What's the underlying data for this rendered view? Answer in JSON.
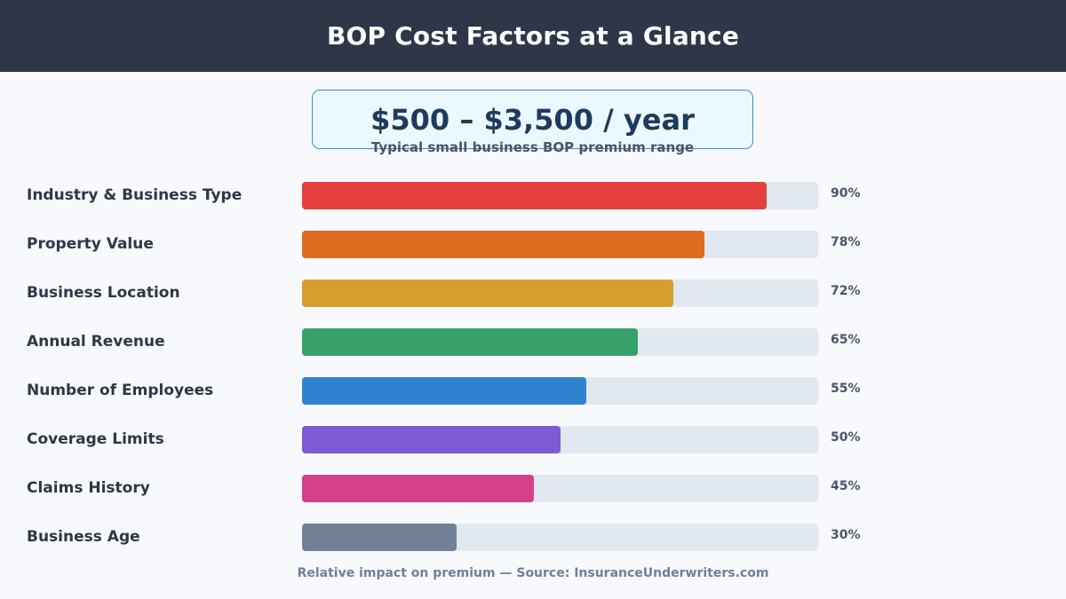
{
  "header": {
    "title": "BOP Cost Factors at a Glance"
  },
  "range": {
    "value": "$500 – $3,500 / year",
    "subtitle": "Typical small business BOP premium range"
  },
  "chart_data": {
    "type": "bar",
    "orientation": "horizontal",
    "categories": [
      "Industry & Business Type",
      "Property Value",
      "Business Location",
      "Annual Revenue",
      "Number of Employees",
      "Coverage Limits",
      "Claims History",
      "Business Age"
    ],
    "values": [
      90,
      78,
      72,
      65,
      55,
      50,
      45,
      30
    ],
    "value_labels": [
      "90%",
      "78%",
      "72%",
      "65%",
      "55%",
      "50%",
      "45%",
      "30%"
    ],
    "colors": [
      "#e53e3e",
      "#dd6b20",
      "#d69e2e",
      "#38a169",
      "#3182ce",
      "#805ad5",
      "#d53f8c",
      "#718096"
    ],
    "xlim": [
      0,
      100
    ],
    "grid": false,
    "legend": "none"
  },
  "footer": {
    "note": "Relative impact on premium — Source: InsuranceUnderwriters.com"
  }
}
